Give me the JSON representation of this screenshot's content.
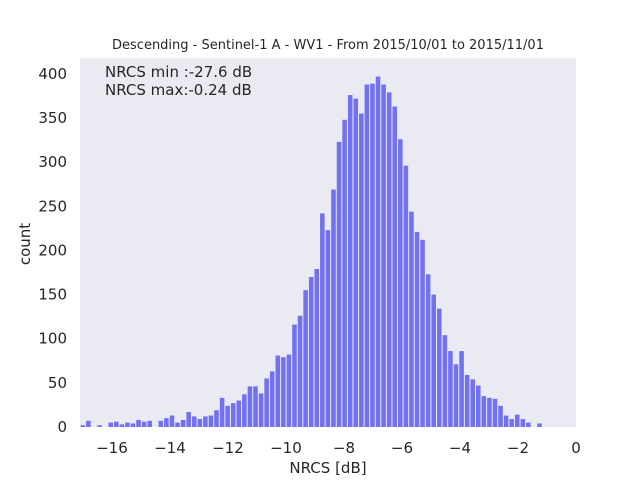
{
  "chart_data": {
    "type": "bar",
    "title": "Descending - Sentinel-1 A - WV1 - From 2015/10/01 to 2015/11/01",
    "xlabel": "NRCS [dB]",
    "ylabel": "count",
    "annotations": [
      "NRCS min :-27.6 dB",
      "NRCS max:-0.24 dB"
    ],
    "xlim": [
      -17.1,
      0
    ],
    "ylim": [
      0,
      418
    ],
    "xticks": [
      -16,
      -14,
      -12,
      -10,
      -8,
      -6,
      -4,
      -2,
      0
    ],
    "xtick_labels": [
      "−16",
      "−14",
      "−12",
      "−10",
      "−8",
      "−6",
      "−4",
      "−2",
      "0"
    ],
    "yticks": [
      0,
      50,
      100,
      150,
      200,
      250,
      300,
      350,
      400
    ],
    "ytick_labels": [
      "0",
      "50",
      "100",
      "150",
      "200",
      "250",
      "300",
      "350",
      "400"
    ],
    "grid": false,
    "background": "#eaeaf2",
    "bar_color": "#7272f0",
    "bin_width": 0.192,
    "bin_start": -17.08,
    "series": [
      {
        "values": [
          2,
          7,
          0,
          2,
          0,
          5,
          6,
          3,
          5,
          4,
          8,
          6,
          7,
          0,
          7,
          10,
          13,
          5,
          8,
          17,
          12,
          9,
          12,
          13,
          19,
          33,
          24,
          27,
          30,
          37,
          46,
          46,
          38,
          55,
          63,
          81,
          79,
          82,
          116,
          126,
          155,
          170,
          179,
          242,
          223,
          269,
          323,
          348,
          376,
          372,
          355,
          388,
          389,
          397,
          388,
          379,
          363,
          326,
          296,
          244,
          221,
          212,
          173,
          150,
          134,
          104,
          86,
          71,
          86,
          59,
          54,
          47,
          35,
          33,
          32,
          24,
          13,
          9,
          14,
          9,
          5,
          0,
          4
        ]
      }
    ]
  }
}
